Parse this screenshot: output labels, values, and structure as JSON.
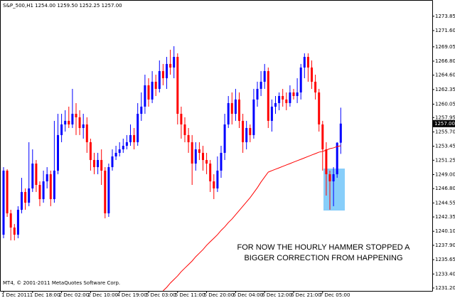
{
  "chart_data": {
    "type": "candlestick",
    "title": "S&P_500,H1  1254.00 1259.50 1252.25 1257.00",
    "footer": "MT4, © 2001-2011 MetaQuotes Software Corp.",
    "annotation": [
      "FOR NOW THE HOURLY HAMMER STOPPED A",
      "BIGGER CORRECTION FROM HAPPENING"
    ],
    "price_label": "1257.00",
    "up_color": "#0000ff",
    "down_color": "#ff0000",
    "ma_color": "#ff0000",
    "categories": [
      "1 Dec 2011",
      null,
      null,
      null,
      null,
      null,
      null,
      null,
      "1 Dec 18:00",
      null,
      null,
      null,
      null,
      null,
      null,
      null,
      "2 Dec 02:00",
      null,
      null,
      null,
      null,
      null,
      null,
      null,
      "2 Dec 10:00",
      null,
      null,
      null,
      null,
      null,
      null,
      null,
      "4 Dec 19:00",
      null,
      null,
      null,
      null,
      null,
      null,
      null,
      "5 Dec 03:00",
      null,
      null,
      null,
      null,
      null,
      null,
      null,
      "5 Dec 11:00",
      null,
      null,
      null,
      null,
      null,
      null,
      null,
      "5 Dec 20:00",
      null,
      null,
      null,
      null,
      null,
      null,
      null,
      "6 Dec 04:00",
      null,
      null,
      null,
      null,
      null,
      null,
      null,
      "6 Dec 12:00",
      null,
      null,
      null,
      null,
      null,
      null,
      null,
      "6 Dec 21:00",
      null,
      null,
      null,
      null,
      null,
      null,
      null,
      "7 Dec 05:00",
      null,
      null,
      null,
      null,
      null
    ],
    "candles": {
      "open": [
        1239.57,
        1249.62,
        1242.92,
        1240.69,
        1239.57,
        1243.48,
        1246.27,
        1244.59,
        1246.83,
        1250.73,
        1247.38,
        1245.15,
        1247.94,
        1249.06,
        1245.15,
        1249.62,
        1255.2,
        1256.87,
        1257.43,
        1256.87,
        1258.54,
        1257.99,
        1256.31,
        1256.87,
        1254.08,
        1251.29,
        1250.17,
        1251.29,
        1249.62,
        1242.92,
        1250.17,
        1251.85,
        1252.41,
        1252.96,
        1253.52,
        1254.08,
        1255.2,
        1254.08,
        1258.54,
        1259.66,
        1263.01,
        1260.78,
        1263.57,
        1262.45,
        1265.24,
        1264.12,
        1266.36,
        1265.8,
        1267.47,
        1258.54,
        1256.87,
        1255.2,
        1254.08,
        1250.73,
        1252.96,
        1252.41,
        1251.29,
        1250.73,
        1247.94,
        1246.83,
        1249.62,
        1252.41,
        1256.87,
        1260.22,
        1258.54,
        1260.78,
        1257.43,
        1254.08,
        1256.31,
        1255.2,
        1260.78,
        1262.45,
        1263.57,
        1265.24,
        1257.43,
        1259.66,
        1260.22,
        1261.33,
        1260.78,
        1260.22,
        1261.89,
        1261.33,
        1261.89,
        1265.8,
        1267.47,
        1265.8,
        1263.57,
        1261.89,
        1256.87,
        1252.96,
        1249.06,
        1247.94,
        1249.06,
        1254.0
      ],
      "high": [
        1250.17,
        1249.84,
        1243.48,
        1241.25,
        1244.04,
        1248.5,
        1246.83,
        1254.08,
        1252.96,
        1251.29,
        1247.94,
        1249.62,
        1250.17,
        1249.62,
        1257.43,
        1258.54,
        1258.54,
        1259.1,
        1259.66,
        1262.45,
        1260.22,
        1259.1,
        1258.54,
        1257.99,
        1254.64,
        1252.41,
        1252.41,
        1252.96,
        1250.17,
        1250.73,
        1252.96,
        1253.52,
        1254.08,
        1254.64,
        1255.2,
        1256.87,
        1256.31,
        1260.22,
        1261.89,
        1264.68,
        1264.12,
        1265.24,
        1264.68,
        1266.91,
        1266.36,
        1267.47,
        1268.59,
        1269.15,
        1268.03,
        1259.66,
        1257.99,
        1256.31,
        1255.2,
        1254.08,
        1254.08,
        1253.52,
        1252.41,
        1251.29,
        1249.06,
        1251.85,
        1253.52,
        1258.54,
        1261.33,
        1261.89,
        1262.45,
        1261.89,
        1258.54,
        1257.43,
        1256.87,
        1262.45,
        1263.57,
        1265.24,
        1266.36,
        1265.8,
        1260.78,
        1261.33,
        1261.89,
        1262.45,
        1261.89,
        1263.01,
        1262.45,
        1264.12,
        1266.36,
        1268.03,
        1268.03,
        1266.91,
        1264.68,
        1262.45,
        1257.43,
        1254.08,
        1249.62,
        1250.17,
        1254.08,
        1259.5
      ],
      "low": [
        1239.01,
        1242.36,
        1238.68,
        1238.68,
        1239.01,
        1242.92,
        1243.48,
        1244.04,
        1246.27,
        1246.27,
        1244.04,
        1244.59,
        1246.83,
        1244.04,
        1244.59,
        1249.06,
        1254.08,
        1255.75,
        1256.31,
        1256.31,
        1255.2,
        1255.2,
        1254.64,
        1252.41,
        1249.62,
        1249.06,
        1249.06,
        1247.38,
        1242.14,
        1242.36,
        1249.62,
        1251.29,
        1251.85,
        1252.41,
        1252.96,
        1253.52,
        1252.96,
        1253.52,
        1257.43,
        1258.54,
        1259.66,
        1260.22,
        1261.33,
        1261.89,
        1263.01,
        1262.45,
        1264.68,
        1264.12,
        1256.87,
        1254.64,
        1254.08,
        1252.41,
        1247.38,
        1249.62,
        1251.29,
        1249.62,
        1249.06,
        1246.27,
        1245.15,
        1246.27,
        1248.5,
        1251.29,
        1256.31,
        1256.87,
        1257.43,
        1256.31,
        1252.41,
        1252.96,
        1254.08,
        1254.64,
        1259.66,
        1261.33,
        1262.45,
        1256.31,
        1255.75,
        1258.54,
        1259.1,
        1259.66,
        1259.1,
        1259.66,
        1260.78,
        1260.22,
        1260.78,
        1264.12,
        1263.57,
        1262.45,
        1260.78,
        1255.75,
        1249.62,
        1245.71,
        1243.48,
        1244.04,
        1248.5,
        1252.25
      ],
      "close": [
        1249.62,
        1242.92,
        1240.69,
        1239.57,
        1243.48,
        1246.27,
        1244.59,
        1246.83,
        1250.73,
        1247.38,
        1245.15,
        1247.94,
        1249.06,
        1245.15,
        1249.62,
        1255.2,
        1256.87,
        1257.43,
        1256.87,
        1258.54,
        1257.99,
        1256.31,
        1256.87,
        1254.08,
        1251.29,
        1250.17,
        1251.29,
        1249.62,
        1242.92,
        1250.17,
        1251.85,
        1252.41,
        1252.96,
        1253.52,
        1254.08,
        1255.2,
        1254.08,
        1258.54,
        1259.66,
        1263.01,
        1260.78,
        1263.57,
        1262.45,
        1265.24,
        1264.12,
        1266.36,
        1265.8,
        1267.47,
        1258.54,
        1256.87,
        1255.2,
        1254.08,
        1250.73,
        1252.96,
        1252.41,
        1251.29,
        1250.73,
        1247.94,
        1246.83,
        1249.62,
        1252.41,
        1256.87,
        1260.22,
        1258.54,
        1260.78,
        1257.43,
        1254.08,
        1256.31,
        1255.2,
        1260.78,
        1262.45,
        1263.57,
        1265.24,
        1257.43,
        1259.66,
        1260.22,
        1261.33,
        1260.78,
        1260.22,
        1261.89,
        1261.33,
        1261.89,
        1265.8,
        1267.47,
        1265.8,
        1263.57,
        1261.89,
        1256.87,
        1252.96,
        1249.06,
        1247.94,
        1249.06,
        1254.0,
        1257.0
      ]
    },
    "ma": [
      null,
      null,
      null,
      null,
      null,
      null,
      null,
      null,
      null,
      null,
      null,
      null,
      null,
      null,
      null,
      null,
      null,
      null,
      null,
      null,
      null,
      null,
      null,
      null,
      null,
      null,
      null,
      null,
      null,
      null,
      null,
      null,
      null,
      null,
      null,
      null,
      null,
      null,
      null,
      null,
      null,
      null,
      null,
      null,
      1230.76,
      1231.31,
      1231.98,
      1232.54,
      1233.1,
      1233.77,
      1234.33,
      1234.88,
      1235.44,
      1236.11,
      1236.67,
      1237.23,
      1237.9,
      1238.46,
      1239.01,
      1239.57,
      1240.24,
      1240.8,
      1241.47,
      1242.03,
      1242.7,
      1243.37,
      1244.04,
      1244.71,
      1245.38,
      1246.16,
      1246.94,
      1247.83,
      1248.61,
      1249.39,
      1249.62,
      1249.84,
      1250.06,
      1250.29,
      1250.51,
      1250.73,
      1250.96,
      1251.18,
      1251.4,
      1251.62,
      1251.85,
      1252.07,
      1252.29,
      1252.52,
      1252.63,
      1252.85,
      1253.07,
      1253.19,
      1253.41,
      1253.52
    ],
    "ylim": [
      1230.75,
      1275.95
    ],
    "yticks": [
      {
        "value": 1273.85,
        "label": "1273.85"
      },
      {
        "value": 1271.6,
        "label": "1271.60"
      },
      {
        "value": 1269.05,
        "label": "1269.05"
      },
      {
        "value": 1266.8,
        "label": "1266.80"
      },
      {
        "value": 1264.6,
        "label": "1264.60"
      },
      {
        "value": 1262.35,
        "label": "1262.35"
      },
      {
        "value": 1260.05,
        "label": "1260.05"
      },
      {
        "value": 1257.95,
        "label": "1257.95"
      },
      {
        "value": 1255.7,
        "label": "1255.70"
      },
      {
        "value": 1253.45,
        "label": "1253.45"
      },
      {
        "value": 1251.25,
        "label": "1251.25"
      },
      {
        "value": 1249,
        "label": "1249.00"
      },
      {
        "value": 1246.8,
        "label": "1246.80"
      },
      {
        "value": 1244.55,
        "label": "1244.55"
      },
      {
        "value": 1242.35,
        "label": "1242.35"
      },
      {
        "value": 1240.1,
        "label": "1240.10"
      },
      {
        "value": 1237.9,
        "label": "1237.90"
      },
      {
        "value": 1235.65,
        "label": "1235.65"
      },
      {
        "value": 1233.4,
        "label": "1233.40"
      },
      {
        "value": 1231.2,
        "label": "1231.20"
      }
    ],
    "grid": false
  }
}
